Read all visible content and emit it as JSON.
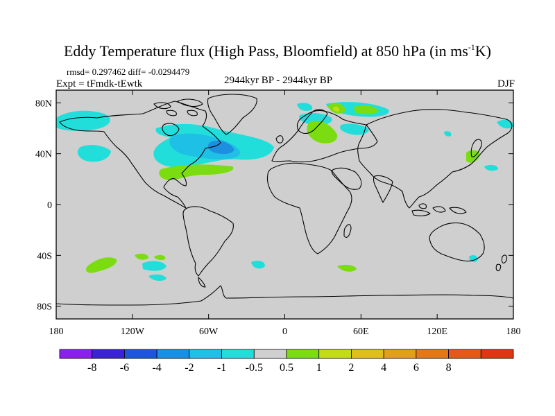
{
  "title": {
    "main": "Eddy Temperature flux (High Pass, Bloomfield) at 850 hPa (in ms",
    "superscript": "-1",
    "tail": "K)"
  },
  "stats_line": "rmsd= 0.297462 diff= -0.0294479",
  "expt_label": "Expt = tFmdk-tEwtk",
  "period_label": "2944kyr BP - 2944kyr BP",
  "season_label": "DJF",
  "map": {
    "projection": "cylindrical-equidistant",
    "lon_range": [
      -180,
      180
    ],
    "lat_range": [
      -90,
      90
    ],
    "y_ticks": [
      {
        "lat": 80,
        "label": "80N"
      },
      {
        "lat": 40,
        "label": "40N"
      },
      {
        "lat": 0,
        "label": "0"
      },
      {
        "lat": -40,
        "label": "40S"
      },
      {
        "lat": -80,
        "label": "80S"
      }
    ],
    "x_ticks": [
      {
        "lon": -180,
        "label": "180"
      },
      {
        "lon": -120,
        "label": "120W"
      },
      {
        "lon": -60,
        "label": "60W"
      },
      {
        "lon": 0,
        "label": "0"
      },
      {
        "lon": 60,
        "label": "60E"
      },
      {
        "lon": 120,
        "label": "120E"
      },
      {
        "lon": 180,
        "label": "180"
      }
    ],
    "background_color": "#cfcfcf"
  },
  "colorbar": {
    "colors": [
      "#8a1ff0",
      "#3a22d8",
      "#1e56d8",
      "#1d8fe0",
      "#1ec0e6",
      "#22dedb",
      "#cfcfcf",
      "#7bdc10",
      "#c4dc14",
      "#e0c018",
      "#e0a01a",
      "#e0781c",
      "#e05a1c",
      "#e03414"
    ],
    "tick_labels": [
      "-8",
      "-6",
      "-4",
      "-2",
      "-1",
      "-0.5",
      "0.5",
      "1",
      "2",
      "4",
      "6",
      "8"
    ]
  }
}
